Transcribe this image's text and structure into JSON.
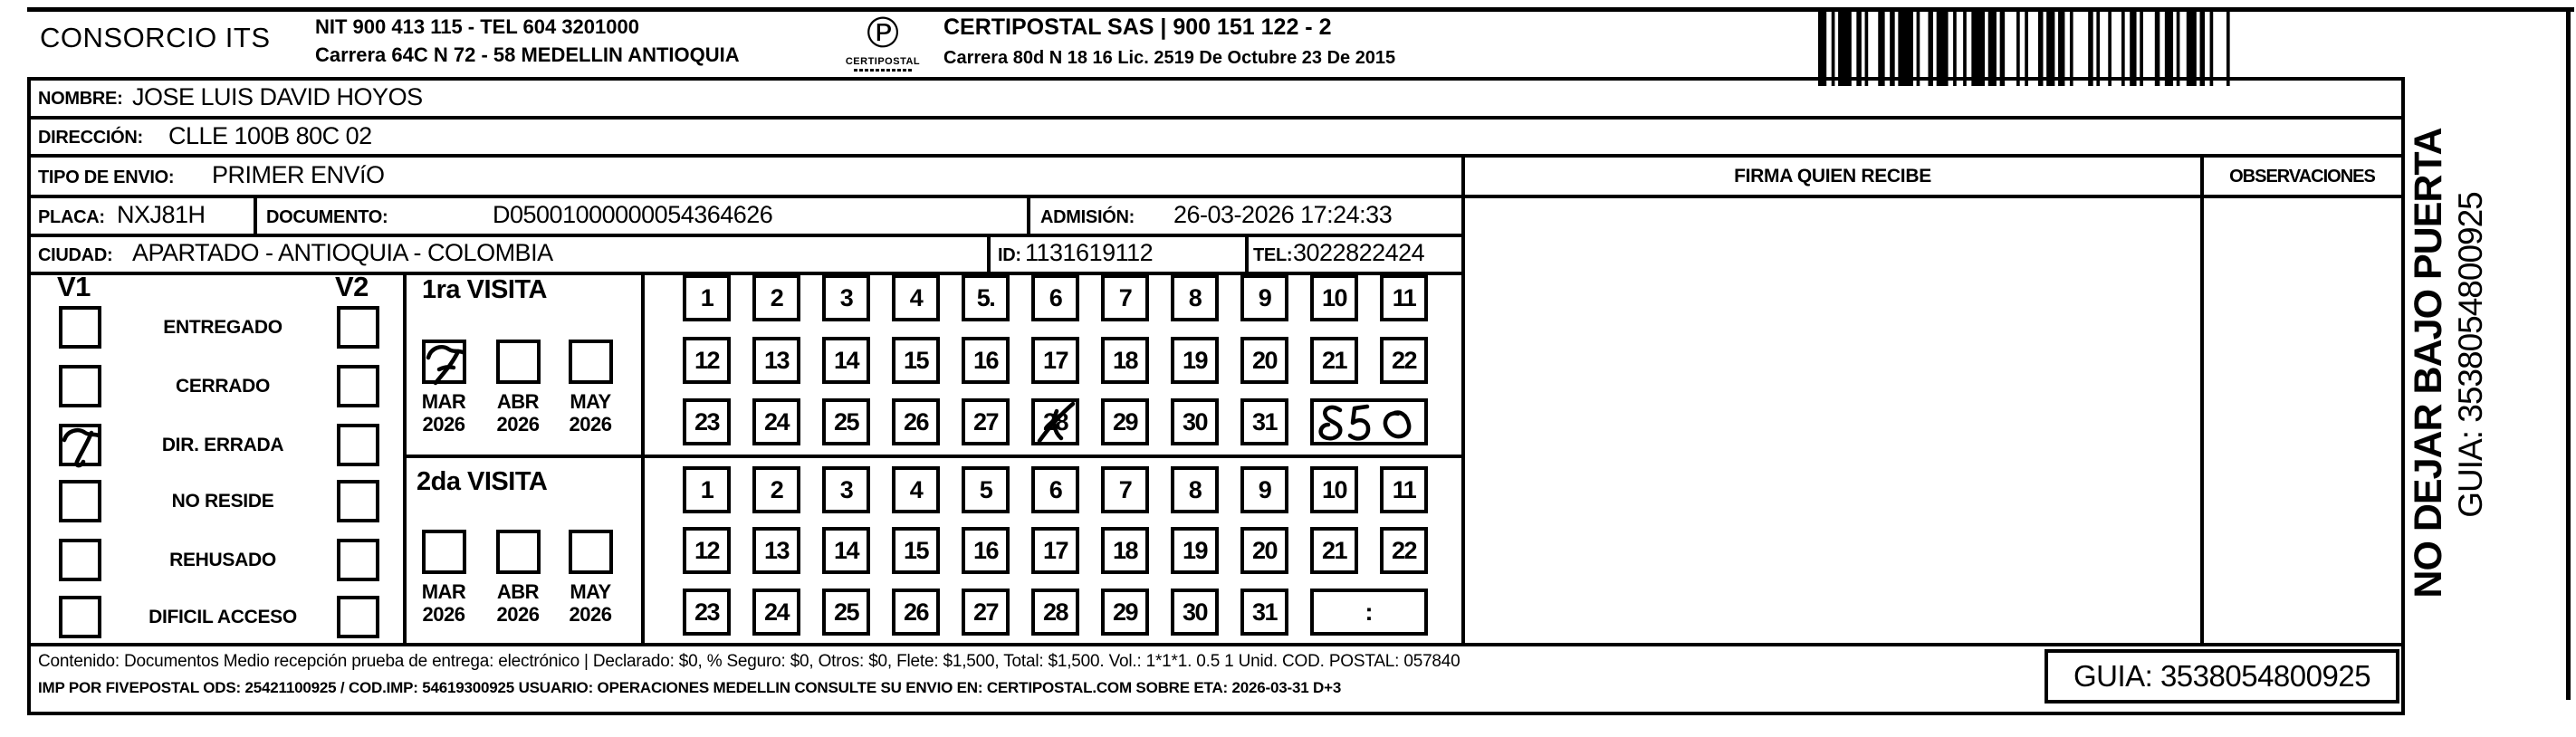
{
  "header": {
    "company": "CONSORCIO ITS",
    "company_info_line1": "NIT 900 413 115 - TEL 604 3201000",
    "company_info_line2": "Carrera 64C N 72 - 58 MEDELLIN ANTIOQUIA",
    "logo_text": "CERTIPOSTAL",
    "carrier_line1": "CERTIPOSTAL SAS | 900 151 122 - 2",
    "carrier_line2": "Carrera 80d N 18 16  Lic. 2519 De Octubre 23 De 2015"
  },
  "recipient": {
    "nombre_label": "NOMBRE:",
    "nombre": "JOSE LUIS DAVID HOYOS",
    "direccion_label": "DIRECCIÓN:",
    "direccion": "CLLE 100B 80C 02",
    "tipo_envio_label": "TIPO DE ENVIO:",
    "tipo_envio": "PRIMER ENVíO",
    "placa_label": "PLACA:",
    "placa": "NXJ81H",
    "documento_label": "DOCUMENTO:",
    "documento": "D05001000000054364626",
    "admision_label": "ADMISIÓN:",
    "admision": "26-03-2026 17:24:33",
    "ciudad_label": "CIUDAD:",
    "ciudad": "APARTADO - ANTIOQUIA - COLOMBIA",
    "id_label": "ID:",
    "id": "1131619112",
    "tel_label": "TEL:",
    "tel": "3022822424"
  },
  "columns": {
    "firma_header": "FIRMA QUIEN RECIBE",
    "observaciones_header": "OBSERVACIONES"
  },
  "visits_panel": {
    "v1_label": "V1",
    "v2_label": "V2",
    "statuses": [
      {
        "label": "ENTREGADO",
        "v1_checked": false,
        "v2_checked": false
      },
      {
        "label": "CERRADO",
        "v1_checked": false,
        "v2_checked": false
      },
      {
        "label": "DIR. ERRADA",
        "v1_checked": true,
        "v2_checked": false
      },
      {
        "label": "NO RESIDE",
        "v1_checked": false,
        "v2_checked": false
      },
      {
        "label": "REHUSADO",
        "v1_checked": false,
        "v2_checked": false
      },
      {
        "label": "DIFICIL ACCESO",
        "v1_checked": false,
        "v2_checked": false
      }
    ],
    "visita1": {
      "title": "1ra VISITA",
      "months": [
        {
          "month": "MAR",
          "year": "2026",
          "checked": true
        },
        {
          "month": "ABR",
          "year": "2026",
          "checked": false
        },
        {
          "month": "MAY",
          "year": "2026",
          "checked": false
        }
      ],
      "day_rows": [
        [
          "1",
          "2",
          "3",
          "4",
          "5.",
          "6",
          "7",
          "8",
          "9",
          "10",
          "11"
        ],
        [
          "12",
          "13",
          "14",
          "15",
          "16",
          "17",
          "18",
          "19",
          "20",
          "21",
          "22"
        ],
        [
          "23",
          "24",
          "25",
          "26",
          "27",
          "28",
          "29",
          "30",
          "31"
        ]
      ],
      "marked_day": 28,
      "time_cell": "850",
      "time_handwritten": true
    },
    "visita2": {
      "title": "2da VISITA",
      "months": [
        {
          "month": "MAR",
          "year": "2026",
          "checked": false
        },
        {
          "month": "ABR",
          "year": "2026",
          "checked": false
        },
        {
          "month": "MAY",
          "year": "2026",
          "checked": false
        }
      ],
      "day_rows": [
        [
          "1",
          "2",
          "3",
          "4",
          "5",
          "6",
          "7",
          "8",
          "9",
          "10",
          "11"
        ],
        [
          "12",
          "13",
          "14",
          "15",
          "16",
          "17",
          "18",
          "19",
          "20",
          "21",
          "22"
        ],
        [
          "23",
          "24",
          "25",
          "26",
          "27",
          "28",
          "29",
          "30",
          "31"
        ]
      ],
      "marked_day": null,
      "time_cell": ":",
      "time_handwritten": false
    }
  },
  "footer": {
    "line1": "Contenido: Documentos Medio recepción prueba de entrega: electrónico | Declarado: $0, % Seguro: $0, Otros: $0, Flete: $1,500, Total: $1,500. Vol.: 1*1*1. 0.5 1 Unid. COD. POSTAL: 057840",
    "line2": "IMP POR FIVEPOSTAL ODS: 25421100925 / COD.IMP: 54619300925 USUARIO: OPERACIONES MEDELLIN CONSULTE SU ENVIO EN: CERTIPOSTAL.COM SOBRE ETA: 2026-03-31 D+3",
    "guia": "GUIA: 3538054800925"
  },
  "side_note": {
    "line1": "NO DEJAR BAJO PUERTA",
    "line2": "GUIA: 3538054800925"
  },
  "colors": {
    "ink": "#000000",
    "paper": "#ffffff"
  }
}
